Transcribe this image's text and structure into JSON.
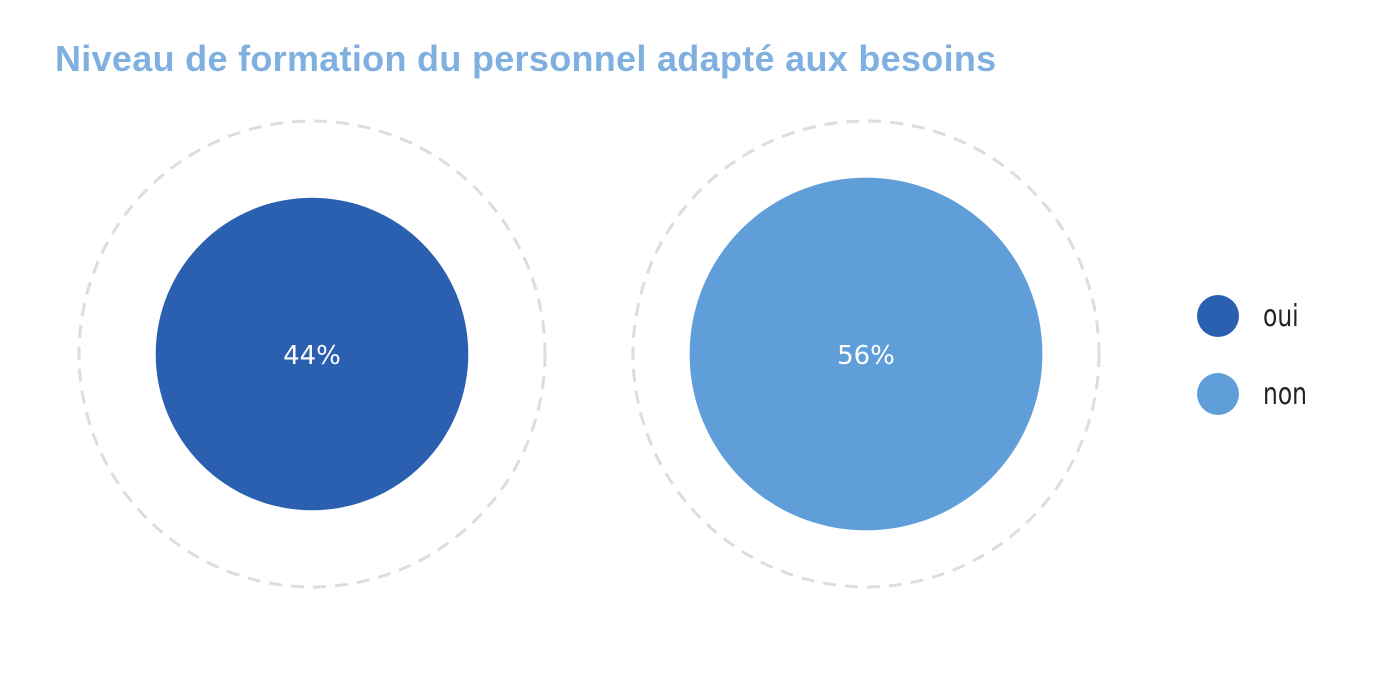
{
  "colors": {
    "title": "#7fb0e0",
    "ring": "#dddddd",
    "label": "#ffffff"
  },
  "chart_data": {
    "type": "bubble",
    "title": "Niveau de formation du personnel adapté aux besoins",
    "max_value": 100,
    "series": [
      {
        "name": "oui",
        "value": 44,
        "label": "44%",
        "color": "#2b60b0"
      },
      {
        "name": "non",
        "value": 56,
        "label": "56%",
        "color": "#5f9ed9"
      }
    ],
    "legend_position": "right"
  }
}
